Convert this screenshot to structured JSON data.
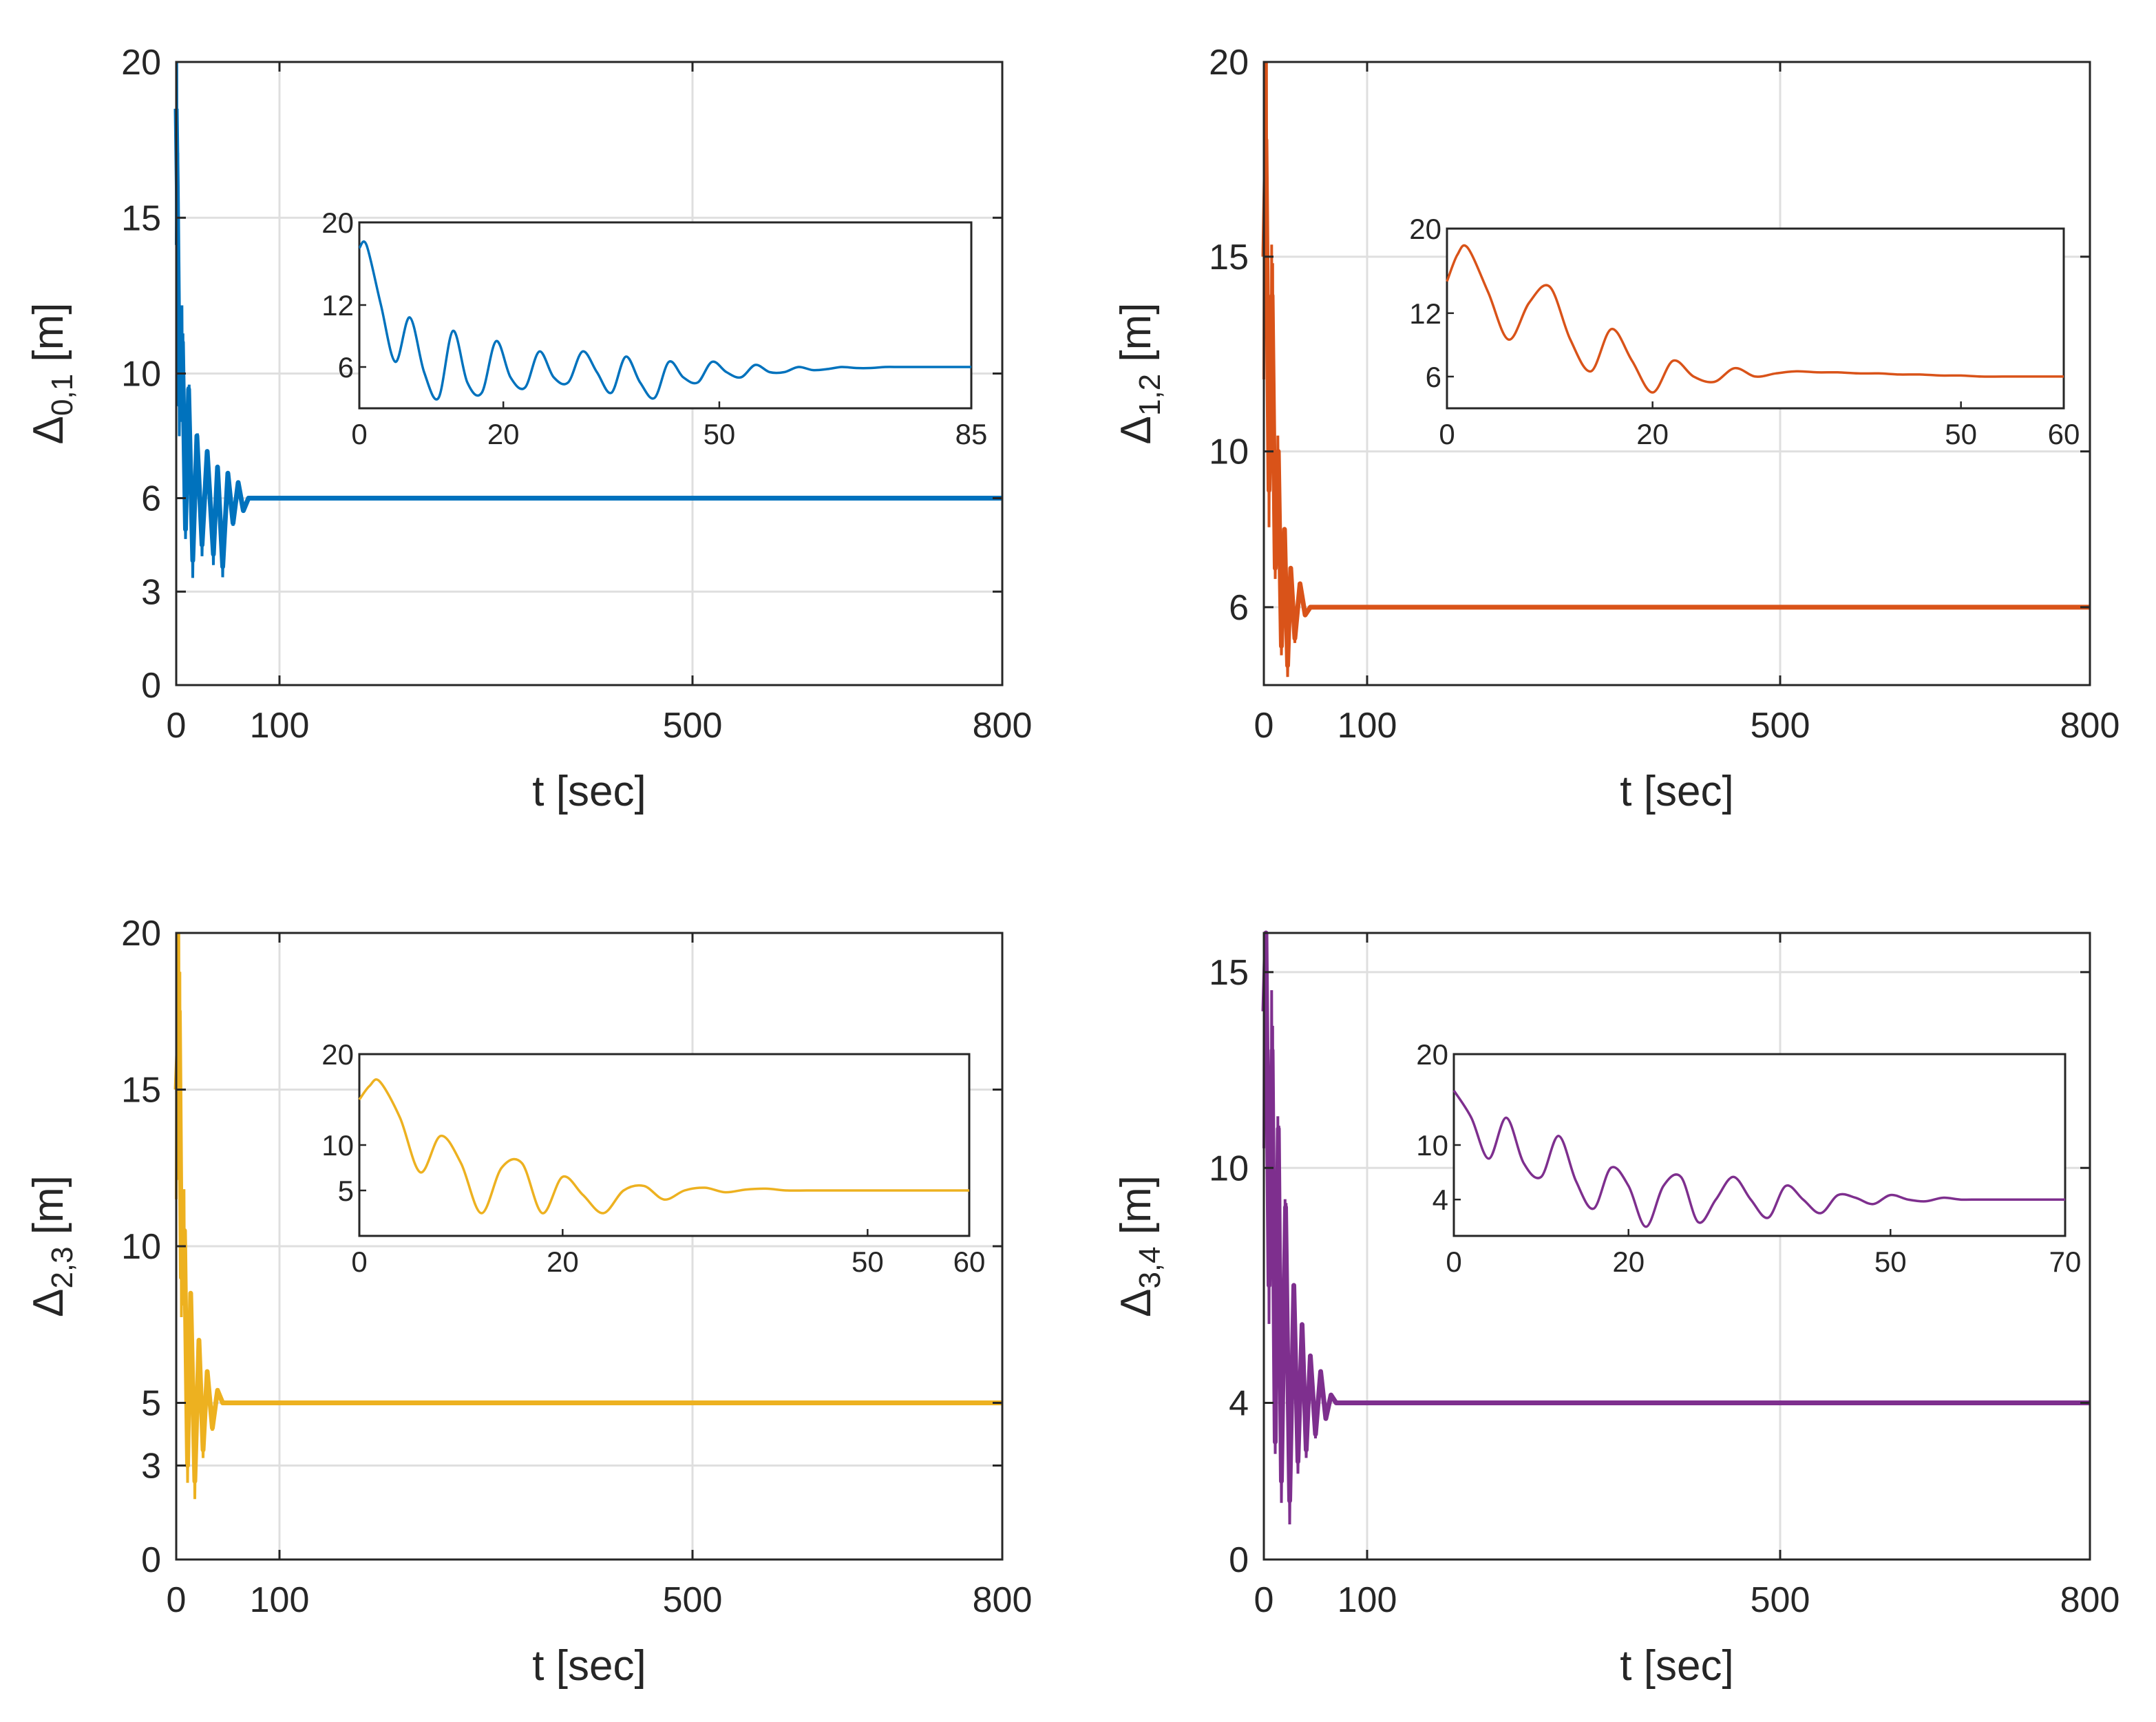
{
  "chart_data": [
    {
      "type": "line",
      "ylabel_symbol": "Δ",
      "ylabel_subscript": "0,1",
      "ylabel_unit": "[m]",
      "xlabel": "t [sec]",
      "xlim": [
        0,
        800
      ],
      "ylim": [
        0,
        20
      ],
      "xticks": [
        0,
        100,
        500,
        800
      ],
      "yticks": [
        0,
        3,
        6,
        10,
        15,
        20
      ],
      "color": "#0072BD",
      "steady_value": 6,
      "initial_value": 18.5,
      "settling_time": 70,
      "series": [
        {
          "name": "Delta_0,1",
          "points": [
            [
              0,
              18.5
            ],
            [
              1,
              16
            ],
            [
              3,
              9
            ],
            [
              6,
              11
            ],
            [
              9,
              5
            ],
            [
              12,
              9.5
            ],
            [
              16,
              4
            ],
            [
              20,
              8
            ],
            [
              25,
              4.5
            ],
            [
              30,
              7.5
            ],
            [
              36,
              4.2
            ],
            [
              40,
              7
            ],
            [
              45,
              3.8
            ],
            [
              50,
              6.8
            ],
            [
              55,
              5.2
            ],
            [
              60,
              6.5
            ],
            [
              65,
              5.6
            ],
            [
              70,
              6
            ],
            [
              800,
              6
            ]
          ]
        }
      ],
      "inset": {
        "xlim": [
          0,
          85
        ],
        "ylim": [
          2,
          20
        ],
        "xticks": [
          0,
          20,
          50,
          85
        ],
        "yticks": [
          6,
          12,
          20
        ],
        "x": [
          0,
          1,
          3,
          5,
          7,
          9,
          11,
          13,
          15,
          17,
          19,
          21,
          23,
          25,
          27,
          29,
          31,
          33,
          35,
          37,
          39,
          41,
          43,
          45,
          47,
          49,
          51,
          53,
          55,
          57,
          59,
          61,
          63,
          65,
          67,
          69,
          71,
          73,
          75,
          77,
          79,
          81,
          83,
          85
        ],
        "y": [
          17.5,
          17.8,
          12.0,
          6.5,
          10.8,
          5.5,
          3.0,
          9.5,
          4.5,
          3.5,
          8.5,
          5.0,
          4.0,
          7.5,
          5.0,
          4.5,
          7.5,
          5.5,
          3.5,
          7.0,
          4.5,
          3.0,
          6.5,
          5.0,
          4.5,
          6.5,
          5.5,
          5.0,
          6.2,
          5.5,
          5.5,
          6.0,
          5.7,
          5.8,
          6.0,
          5.9,
          5.9,
          6.0,
          6.0,
          6.0,
          6.0,
          6.0,
          6.0,
          6.0
        ]
      }
    },
    {
      "type": "line",
      "ylabel_symbol": "Δ",
      "ylabel_subscript": "1,2",
      "ylabel_unit": "[m]",
      "xlabel": "t [sec]",
      "xlim": [
        0,
        800
      ],
      "ylim": [
        4,
        20
      ],
      "xticks": [
        0,
        100,
        500,
        800
      ],
      "yticks": [
        6,
        10,
        15,
        20
      ],
      "color": "#D95319",
      "steady_value": 6,
      "initial_value": 15,
      "settling_time": 45,
      "series": [
        {
          "name": "Delta_1,2",
          "points": [
            [
              0,
              15
            ],
            [
              2,
              18
            ],
            [
              5,
              9
            ],
            [
              8,
              14
            ],
            [
              11,
              7
            ],
            [
              14,
              10
            ],
            [
              17,
              5
            ],
            [
              20,
              8
            ],
            [
              23,
              4.5
            ],
            [
              26,
              7
            ],
            [
              30,
              5.2
            ],
            [
              35,
              6.6
            ],
            [
              40,
              5.8
            ],
            [
              45,
              6
            ],
            [
              800,
              6
            ]
          ]
        }
      ],
      "inset": {
        "xlim": [
          0,
          60
        ],
        "ylim": [
          3,
          20
        ],
        "xticks": [
          0,
          20,
          50,
          60
        ],
        "yticks": [
          6,
          12,
          20
        ],
        "x": [
          0,
          1,
          2,
          4,
          6,
          8,
          10,
          12,
          14,
          16,
          18,
          20,
          22,
          24,
          26,
          28,
          30,
          32,
          34,
          36,
          38,
          40,
          42,
          44,
          46,
          48,
          50,
          52,
          54,
          56,
          58,
          60
        ],
        "y": [
          15.0,
          17.5,
          18.2,
          14.0,
          9.5,
          13.0,
          14.5,
          9.5,
          6.5,
          10.5,
          7.5,
          4.5,
          7.5,
          6.0,
          5.5,
          6.8,
          6.0,
          6.3,
          6.5,
          6.4,
          6.4,
          6.3,
          6.3,
          6.2,
          6.2,
          6.1,
          6.1,
          6.0,
          6.0,
          6.0,
          6.0,
          6.0
        ]
      }
    },
    {
      "type": "line",
      "ylabel_symbol": "Δ",
      "ylabel_subscript": "2,3",
      "ylabel_unit": "[m]",
      "xlabel": "t [sec]",
      "xlim": [
        0,
        800
      ],
      "ylim": [
        0,
        20
      ],
      "xticks": [
        0,
        100,
        500,
        800
      ],
      "yticks": [
        0,
        3,
        5,
        10,
        15,
        20
      ],
      "color": "#EDB120",
      "steady_value": 5,
      "initial_value": 15,
      "settling_time": 45,
      "series": [
        {
          "name": "Delta_2,3",
          "points": [
            [
              0,
              15
            ],
            [
              3,
              17.5
            ],
            [
              5,
              9
            ],
            [
              8,
              10.5
            ],
            [
              11,
              3
            ],
            [
              14,
              8.5
            ],
            [
              18,
              2.5
            ],
            [
              22,
              7
            ],
            [
              26,
              3.5
            ],
            [
              30,
              6
            ],
            [
              35,
              4.2
            ],
            [
              40,
              5.4
            ],
            [
              45,
              5
            ],
            [
              800,
              5
            ]
          ]
        }
      ],
      "inset": {
        "xlim": [
          0,
          60
        ],
        "ylim": [
          0,
          20
        ],
        "xticks": [
          0,
          20,
          50,
          60
        ],
        "yticks": [
          5,
          10,
          20
        ],
        "x": [
          0,
          1,
          2,
          4,
          6,
          8,
          10,
          12,
          14,
          16,
          18,
          20,
          22,
          24,
          26,
          28,
          30,
          32,
          34,
          36,
          38,
          40,
          42,
          44,
          46,
          48,
          50,
          52,
          54,
          56,
          58,
          60
        ],
        "y": [
          15.0,
          16.5,
          17.0,
          13.0,
          7.0,
          11.0,
          8.0,
          2.5,
          7.5,
          8.0,
          2.5,
          6.5,
          4.5,
          2.5,
          5.0,
          5.5,
          4.0,
          5.0,
          5.3,
          4.8,
          5.1,
          5.2,
          5.0,
          5.0,
          5.0,
          5.0,
          5.0,
          5.0,
          5.0,
          5.0,
          5.0,
          5.0
        ]
      }
    },
    {
      "type": "line",
      "ylabel_symbol": "Δ",
      "ylabel_subscript": "3,4",
      "ylabel_unit": "[m]",
      "xlabel": "t [sec]",
      "xlim": [
        0,
        800
      ],
      "ylim": [
        0,
        16
      ],
      "xticks": [
        0,
        100,
        500,
        800
      ],
      "yticks": [
        0,
        4,
        10,
        15
      ],
      "color": "#7E2F8E",
      "steady_value": 4,
      "initial_value": 14,
      "settling_time": 70,
      "series": [
        {
          "name": "Delta_3,4",
          "points": [
            [
              0,
              14
            ],
            [
              2,
              16
            ],
            [
              5,
              7
            ],
            [
              8,
              13
            ],
            [
              11,
              3
            ],
            [
              14,
              11
            ],
            [
              17,
              2
            ],
            [
              21,
              9
            ],
            [
              25,
              1.5
            ],
            [
              29,
              7
            ],
            [
              33,
              2.5
            ],
            [
              37,
              6
            ],
            [
              41,
              2.8
            ],
            [
              45,
              5.2
            ],
            [
              50,
              3.2
            ],
            [
              55,
              4.8
            ],
            [
              60,
              3.6
            ],
            [
              65,
              4.2
            ],
            [
              70,
              4
            ],
            [
              800,
              4
            ]
          ]
        }
      ],
      "inset": {
        "xlim": [
          0,
          70
        ],
        "ylim": [
          0,
          20
        ],
        "xticks": [
          0,
          20,
          50,
          70
        ],
        "yticks": [
          4,
          10,
          20
        ],
        "x": [
          0,
          2,
          4,
          6,
          8,
          10,
          12,
          14,
          16,
          18,
          20,
          22,
          24,
          26,
          28,
          30,
          32,
          34,
          36,
          38,
          40,
          42,
          44,
          46,
          48,
          50,
          52,
          54,
          56,
          58,
          60,
          62,
          64,
          66,
          68,
          70
        ],
        "y": [
          16.0,
          13.0,
          8.5,
          13.0,
          8.0,
          6.5,
          11.0,
          6.0,
          3.0,
          7.5,
          5.5,
          1.0,
          5.5,
          6.5,
          1.5,
          4.0,
          6.5,
          4.0,
          2.0,
          5.5,
          4.0,
          2.5,
          4.5,
          4.2,
          3.5,
          4.5,
          4.0,
          3.8,
          4.2,
          4.0,
          4.0,
          4.0,
          4.0,
          4.0,
          4.0,
          4.0
        ]
      }
    }
  ]
}
